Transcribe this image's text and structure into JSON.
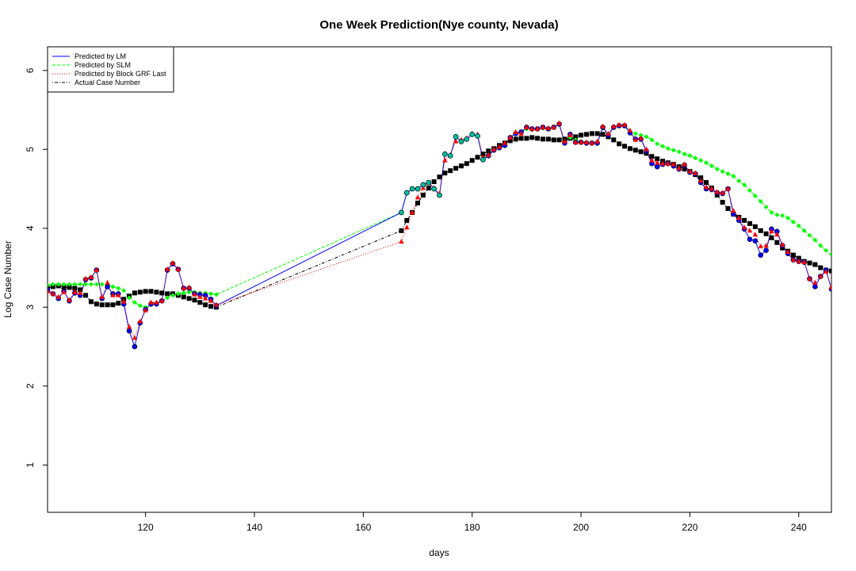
{
  "chart_data": {
    "type": "line",
    "title": "One Week Prediction(Nye county, Nevada)",
    "xlabel": "days",
    "ylabel": "Log Case Number",
    "xlim": [
      102,
      246
    ],
    "ylim": [
      0.4,
      6.3
    ],
    "xticks": [
      120,
      140,
      160,
      180,
      200,
      220,
      240
    ],
    "yticks": [
      1,
      2,
      3,
      4,
      5,
      6
    ],
    "grid": false,
    "legend_position": "top-left",
    "legend": [
      {
        "label": "Predicted by LM",
        "color": "#0000ff",
        "dash": "solid"
      },
      {
        "label": "Predicted by SLM",
        "color": "#00ff00",
        "dash": "dashed"
      },
      {
        "label": "Predicted by Block GRF Last",
        "color": "#ff0000",
        "dash": "dotted"
      },
      {
        "label": "Actual Case Number",
        "color": "#000000",
        "dash": "dotdash"
      }
    ],
    "segments": [
      [
        102,
        133
      ],
      [
        167,
        246
      ]
    ],
    "series": [
      {
        "name": "Actual Case Number",
        "color": "#000000",
        "marker": "square",
        "x": [
          102,
          103,
          104,
          105,
          106,
          107,
          108,
          109,
          110,
          111,
          112,
          113,
          114,
          115,
          116,
          117,
          118,
          119,
          120,
          121,
          122,
          123,
          124,
          125,
          126,
          127,
          128,
          129,
          130,
          131,
          132,
          133,
          167,
          168,
          169,
          170,
          171,
          172,
          173,
          174,
          175,
          176,
          177,
          178,
          179,
          180,
          181,
          182,
          183,
          184,
          185,
          186,
          187,
          188,
          189,
          190,
          191,
          192,
          193,
          194,
          195,
          196,
          197,
          198,
          199,
          200,
          201,
          202,
          203,
          204,
          205,
          206,
          207,
          208,
          209,
          210,
          211,
          212,
          213,
          214,
          215,
          216,
          217,
          218,
          219,
          220,
          221,
          222,
          223,
          224,
          225,
          226,
          227,
          228,
          229,
          230,
          231,
          232,
          233,
          234,
          235,
          236,
          237,
          238,
          239,
          240,
          241,
          242,
          243,
          244,
          245,
          246
        ],
        "y": [
          3.24,
          3.26,
          3.27,
          3.25,
          3.25,
          3.24,
          3.22,
          3.15,
          3.07,
          3.04,
          3.03,
          3.03,
          3.03,
          3.05,
          3.1,
          3.14,
          3.18,
          3.19,
          3.2,
          3.2,
          3.19,
          3.18,
          3.17,
          3.17,
          3.15,
          3.13,
          3.11,
          3.09,
          3.06,
          3.03,
          3.01,
          3.0,
          3.97,
          4.1,
          4.2,
          4.32,
          4.42,
          4.51,
          4.59,
          4.65,
          4.7,
          4.73,
          4.76,
          4.79,
          4.82,
          4.86,
          4.9,
          4.94,
          4.98,
          5.01,
          5.05,
          5.08,
          5.11,
          5.13,
          5.14,
          5.14,
          5.15,
          5.14,
          5.13,
          5.13,
          5.12,
          5.12,
          5.13,
          5.14,
          5.16,
          5.18,
          5.19,
          5.2,
          5.2,
          5.19,
          5.16,
          5.12,
          5.07,
          5.04,
          5.01,
          4.99,
          4.97,
          4.95,
          4.91,
          4.88,
          4.85,
          4.83,
          4.81,
          4.78,
          4.75,
          4.72,
          4.68,
          4.64,
          4.58,
          4.51,
          4.42,
          4.33,
          4.25,
          4.18,
          4.14,
          4.1,
          4.06,
          4.02,
          3.97,
          3.93,
          3.88,
          3.82,
          3.75,
          3.71,
          3.66,
          3.62,
          3.58,
          3.56,
          3.54,
          3.5,
          3.47,
          3.46
        ]
      },
      {
        "name": "Predicted by SLM",
        "color": "#00ff00",
        "marker": "diamond",
        "x": [
          102,
          103,
          104,
          105,
          106,
          107,
          108,
          109,
          110,
          111,
          112,
          113,
          114,
          115,
          116,
          117,
          118,
          119,
          120,
          121,
          122,
          123,
          124,
          125,
          126,
          127,
          128,
          129,
          130,
          131,
          132,
          133,
          167,
          168,
          169,
          170,
          171,
          172,
          173,
          174,
          175,
          176,
          177,
          178,
          179,
          180,
          181,
          182,
          183,
          184,
          185,
          186,
          187,
          188,
          189,
          190,
          191,
          192,
          193,
          194,
          195,
          196,
          197,
          198,
          199,
          200,
          201,
          202,
          203,
          204,
          205,
          206,
          207,
          208,
          209,
          210,
          211,
          212,
          213,
          214,
          215,
          216,
          217,
          218,
          219,
          220,
          221,
          222,
          223,
          224,
          225,
          226,
          227,
          228,
          229,
          230,
          231,
          232,
          233,
          234,
          235,
          236,
          237,
          238,
          239,
          240,
          241,
          242,
          243,
          244,
          245,
          246
        ],
        "y": [
          3.28,
          3.29,
          3.29,
          3.29,
          3.29,
          3.29,
          3.29,
          3.29,
          3.29,
          3.29,
          3.29,
          3.29,
          3.26,
          3.24,
          3.21,
          3.12,
          3.06,
          3.02,
          3.0,
          3.03,
          3.05,
          3.08,
          3.12,
          3.15,
          3.17,
          3.18,
          3.19,
          3.19,
          3.18,
          3.18,
          3.17,
          3.16,
          4.2,
          4.45,
          4.5,
          4.5,
          4.55,
          4.58,
          4.5,
          4.42,
          4.94,
          4.92,
          5.16,
          5.1,
          5.13,
          5.19,
          5.17,
          4.88,
          4.93,
          4.99,
          5.02,
          5.05,
          5.15,
          5.2,
          5.22,
          5.26,
          5.25,
          5.26,
          5.27,
          5.26,
          5.28,
          5.32,
          5.09,
          5.15,
          5.12,
          5.1,
          5.09,
          5.08,
          5.07,
          5.27,
          5.18,
          5.28,
          5.3,
          5.3,
          5.23,
          5.2,
          5.18,
          5.16,
          5.12,
          5.07,
          5.04,
          5.01,
          4.99,
          4.97,
          4.94,
          4.92,
          4.89,
          4.86,
          4.83,
          4.79,
          4.75,
          4.72,
          4.69,
          4.66,
          4.6,
          4.55,
          4.48,
          4.41,
          4.34,
          4.27,
          4.2,
          4.17,
          4.16,
          4.13,
          4.08,
          4.03,
          3.97,
          3.91,
          3.85,
          3.78,
          3.72,
          3.67
        ]
      },
      {
        "name": "Predicted by LM",
        "color": "#0000ff",
        "marker": "circle",
        "x": [
          102,
          103,
          104,
          105,
          106,
          107,
          108,
          109,
          110,
          111,
          112,
          113,
          114,
          115,
          116,
          117,
          118,
          119,
          120,
          121,
          122,
          123,
          124,
          125,
          126,
          127,
          128,
          129,
          130,
          131,
          132,
          133,
          167,
          168,
          169,
          170,
          171,
          172,
          173,
          174,
          175,
          176,
          177,
          178,
          179,
          180,
          181,
          182,
          183,
          184,
          185,
          186,
          187,
          188,
          189,
          190,
          191,
          192,
          193,
          194,
          195,
          196,
          197,
          198,
          199,
          200,
          201,
          202,
          203,
          204,
          205,
          206,
          207,
          208,
          209,
          210,
          211,
          212,
          213,
          214,
          215,
          216,
          217,
          218,
          219,
          220,
          221,
          222,
          223,
          224,
          225,
          226,
          227,
          228,
          229,
          230,
          231,
          232,
          233,
          234,
          235,
          236,
          237,
          238,
          239,
          240,
          241,
          242,
          243,
          244,
          245,
          246
        ],
        "y": [
          3.22,
          3.17,
          3.11,
          3.2,
          3.08,
          3.18,
          3.15,
          3.35,
          3.37,
          3.47,
          3.11,
          3.26,
          3.17,
          3.17,
          3.04,
          2.7,
          2.5,
          2.8,
          2.97,
          3.04,
          3.04,
          3.08,
          3.47,
          3.55,
          3.48,
          3.24,
          3.24,
          3.17,
          3.16,
          3.15,
          3.1,
          3.02,
          4.2,
          4.45,
          4.5,
          4.5,
          4.55,
          4.58,
          4.5,
          4.42,
          4.94,
          4.92,
          5.16,
          5.1,
          5.13,
          5.19,
          5.17,
          4.87,
          4.92,
          4.99,
          5.02,
          5.05,
          5.15,
          5.2,
          5.22,
          5.28,
          5.26,
          5.26,
          5.28,
          5.26,
          5.28,
          5.32,
          5.08,
          5.19,
          5.09,
          5.09,
          5.08,
          5.08,
          5.08,
          5.28,
          5.18,
          5.28,
          5.3,
          5.3,
          5.21,
          5.13,
          5.13,
          4.98,
          4.82,
          4.78,
          4.81,
          4.82,
          4.79,
          4.75,
          4.8,
          4.71,
          4.69,
          4.58,
          4.5,
          4.49,
          4.45,
          4.44,
          4.5,
          4.18,
          4.1,
          3.99,
          3.86,
          3.84,
          3.66,
          3.72,
          3.99,
          3.96,
          3.78,
          3.68,
          3.6,
          3.58,
          3.57,
          3.36,
          3.26,
          3.39,
          3.47,
          3.23
        ]
      },
      {
        "name": "Predicted by Block GRF Last",
        "color": "#ff0000",
        "marker": "triangle",
        "x": [
          102,
          103,
          104,
          105,
          106,
          107,
          108,
          109,
          110,
          111,
          112,
          113,
          114,
          115,
          116,
          117,
          118,
          119,
          120,
          121,
          122,
          123,
          124,
          125,
          126,
          127,
          128,
          129,
          130,
          131,
          132,
          133,
          167,
          168,
          169,
          170,
          171,
          172,
          173,
          174,
          175,
          176,
          177,
          178,
          179,
          180,
          181,
          182,
          183,
          184,
          185,
          186,
          187,
          188,
          189,
          190,
          191,
          192,
          193,
          194,
          195,
          196,
          197,
          198,
          199,
          200,
          201,
          202,
          203,
          204,
          205,
          206,
          207,
          208,
          209,
          210,
          211,
          212,
          213,
          214,
          215,
          216,
          217,
          218,
          219,
          220,
          221,
          222,
          223,
          224,
          225,
          226,
          227,
          228,
          229,
          230,
          231,
          232,
          233,
          234,
          235,
          236,
          237,
          238,
          239,
          240,
          241,
          242,
          243,
          244,
          245,
          246
        ],
        "y": [
          3.2,
          3.17,
          3.13,
          3.19,
          3.09,
          3.19,
          3.18,
          3.36,
          3.38,
          3.47,
          3.13,
          3.31,
          3.15,
          3.15,
          3.07,
          2.75,
          2.61,
          2.82,
          2.96,
          3.06,
          3.06,
          3.08,
          3.48,
          3.56,
          3.48,
          3.24,
          3.25,
          3.16,
          3.13,
          3.11,
          3.08,
          3.03,
          3.83,
          4.01,
          4.2,
          4.39,
          4.51,
          4.58,
          4.51,
          4.44,
          4.86,
          4.93,
          5.1,
          5.12,
          5.14,
          5.2,
          5.19,
          4.9,
          4.93,
          5.0,
          5.03,
          5.08,
          5.15,
          5.22,
          5.2,
          5.28,
          5.26,
          5.26,
          5.28,
          5.27,
          5.28,
          5.33,
          5.1,
          5.18,
          5.09,
          5.09,
          5.09,
          5.08,
          5.1,
          5.29,
          5.2,
          5.29,
          5.31,
          5.31,
          5.24,
          5.12,
          5.14,
          5.0,
          4.86,
          4.83,
          4.82,
          4.82,
          4.81,
          4.76,
          4.81,
          4.72,
          4.7,
          4.6,
          4.52,
          4.5,
          4.46,
          4.45,
          4.5,
          4.22,
          4.13,
          4.01,
          3.97,
          3.92,
          3.77,
          3.78,
          3.96,
          3.92,
          3.79,
          3.7,
          3.6,
          3.58,
          3.57,
          3.36,
          3.31,
          3.39,
          3.45,
          3.25
        ]
      }
    ]
  }
}
